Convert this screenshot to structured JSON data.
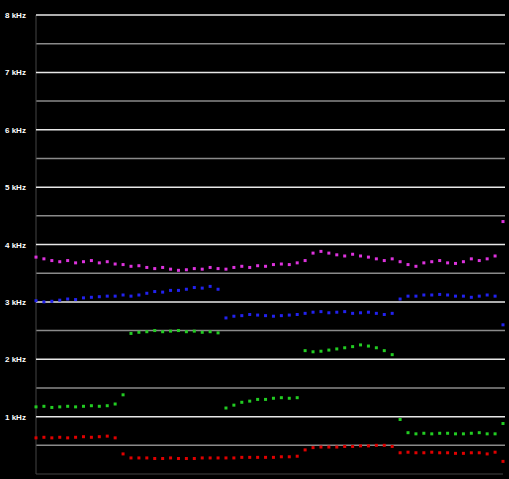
{
  "chart_data": {
    "type": "scatter",
    "x": [
      0,
      1,
      2,
      3,
      4,
      5,
      6,
      7,
      8,
      9,
      10,
      11,
      12,
      13,
      14,
      15,
      16,
      17,
      18,
      19,
      20,
      21,
      22,
      23,
      24,
      25,
      26,
      27,
      28,
      29,
      30,
      31,
      32,
      33,
      34,
      35,
      36,
      37,
      38,
      39,
      40,
      41,
      42,
      43,
      44,
      45,
      46,
      47,
      48,
      49,
      50,
      51,
      52,
      53,
      54,
      55,
      56,
      57,
      58,
      59
    ],
    "xlim": [
      0,
      59
    ],
    "ylim": [
      0,
      8
    ],
    "yticks": [
      {
        "value": 1,
        "label": "1 kHz"
      },
      {
        "value": 2,
        "label": "2 kHz"
      },
      {
        "value": 3,
        "label": "3 kHz"
      },
      {
        "value": 4,
        "label": "4 kHz"
      },
      {
        "value": 5,
        "label": "5 kHz"
      },
      {
        "value": 6,
        "label": "6 kHz"
      },
      {
        "value": 7,
        "label": "7 kHz"
      },
      {
        "value": 8,
        "label": "8 kHz"
      }
    ],
    "grid": true,
    "tick_labels": "y",
    "series": [
      {
        "color": "#e00000",
        "values": [
          0.63,
          0.64,
          0.63,
          0.64,
          0.63,
          0.64,
          0.65,
          0.64,
          0.65,
          0.66,
          0.63,
          0.35,
          0.28,
          0.28,
          0.28,
          0.27,
          0.27,
          0.28,
          0.27,
          0.27,
          0.27,
          0.28,
          0.28,
          0.28,
          0.28,
          0.28,
          0.29,
          0.29,
          0.29,
          0.29,
          0.29,
          0.3,
          0.3,
          0.31,
          0.42,
          0.46,
          0.47,
          0.47,
          0.47,
          0.48,
          0.48,
          0.49,
          0.49,
          0.5,
          0.5,
          0.48,
          0.37,
          0.38,
          0.37,
          0.37,
          0.38,
          0.37,
          0.37,
          0.36,
          0.36,
          0.37,
          0.37,
          0.35,
          0.38,
          0.22
        ]
      },
      {
        "color": "#22cc22",
        "values": [
          1.17,
          1.18,
          1.16,
          1.17,
          1.18,
          1.17,
          1.18,
          1.19,
          1.18,
          1.19,
          1.22,
          1.38,
          2.45,
          2.47,
          2.48,
          2.5,
          2.48,
          2.49,
          2.5,
          2.48,
          2.49,
          2.47,
          2.48,
          2.46,
          1.15,
          1.2,
          1.25,
          1.27,
          1.3,
          1.3,
          1.32,
          1.33,
          1.32,
          1.33,
          2.15,
          2.13,
          2.14,
          2.16,
          2.18,
          2.2,
          2.22,
          2.25,
          2.23,
          2.2,
          2.15,
          2.08,
          0.95,
          0.72,
          0.7,
          0.71,
          0.7,
          0.71,
          0.71,
          0.7,
          0.7,
          0.71,
          0.72,
          0.7,
          0.7,
          0.88
        ]
      },
      {
        "color": "#2222ee",
        "values": [
          3.02,
          3.0,
          3.01,
          3.03,
          3.05,
          3.04,
          3.07,
          3.08,
          3.09,
          3.1,
          3.1,
          3.12,
          3.1,
          3.12,
          3.15,
          3.18,
          3.17,
          3.2,
          3.2,
          3.22,
          3.25,
          3.24,
          3.27,
          3.22,
          2.72,
          2.75,
          2.76,
          2.78,
          2.77,
          2.76,
          2.75,
          2.76,
          2.77,
          2.78,
          2.8,
          2.82,
          2.83,
          2.81,
          2.82,
          2.83,
          2.8,
          2.81,
          2.82,
          2.8,
          2.78,
          2.8,
          3.05,
          3.1,
          3.1,
          3.12,
          3.12,
          3.13,
          3.12,
          3.1,
          3.1,
          3.08,
          3.1,
          3.12,
          3.1,
          2.6
        ]
      },
      {
        "color": "#dd33dd",
        "values": [
          3.78,
          3.75,
          3.72,
          3.7,
          3.72,
          3.68,
          3.7,
          3.72,
          3.68,
          3.7,
          3.66,
          3.65,
          3.62,
          3.63,
          3.6,
          3.58,
          3.6,
          3.57,
          3.55,
          3.56,
          3.58,
          3.57,
          3.6,
          3.58,
          3.57,
          3.6,
          3.62,
          3.6,
          3.63,
          3.62,
          3.65,
          3.66,
          3.65,
          3.68,
          3.72,
          3.85,
          3.88,
          3.85,
          3.82,
          3.8,
          3.83,
          3.8,
          3.78,
          3.75,
          3.72,
          3.75,
          3.7,
          3.65,
          3.62,
          3.68,
          3.7,
          3.72,
          3.68,
          3.67,
          3.7,
          3.75,
          3.72,
          3.75,
          3.8,
          4.4
        ]
      }
    ]
  }
}
